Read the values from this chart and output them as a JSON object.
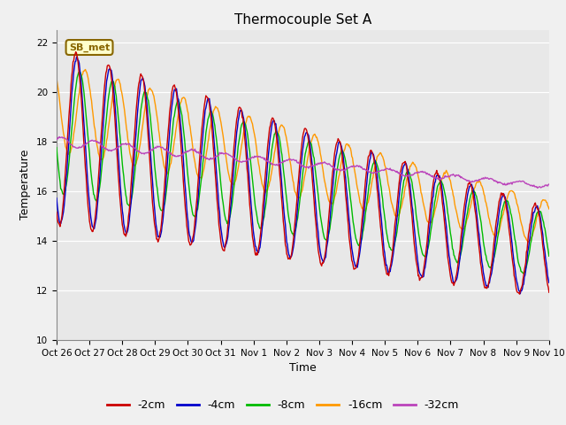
{
  "title": "Thermocouple Set A",
  "xlabel": "Time",
  "ylabel": "Temperature",
  "ylim": [
    10,
    22.5
  ],
  "yticks": [
    10,
    12,
    14,
    16,
    18,
    20,
    22
  ],
  "fig_bg_color": "#f0f0f0",
  "plot_bg_color": "#e8e8e8",
  "annotation_text": "SB_met",
  "annotation_bg": "#ffffcc",
  "annotation_border": "#886600",
  "series_colors": {
    "-2cm": "#cc0000",
    "-4cm": "#0000cc",
    "-8cm": "#00bb00",
    "-16cm": "#ff9900",
    "-32cm": "#bb44bb"
  },
  "line_width": 1.0,
  "x_tick_labels": [
    "Oct 26",
    "Oct 27",
    "Oct 28",
    "Oct 29",
    "Oct 30",
    "Oct 31",
    "Nov 1",
    "Nov 2",
    "Nov 3",
    "Nov 4",
    "Nov 5",
    "Nov 6",
    "Nov 7",
    "Nov 8",
    "Nov 9",
    "Nov 10"
  ],
  "num_days": 15,
  "pts_per_day": 48
}
